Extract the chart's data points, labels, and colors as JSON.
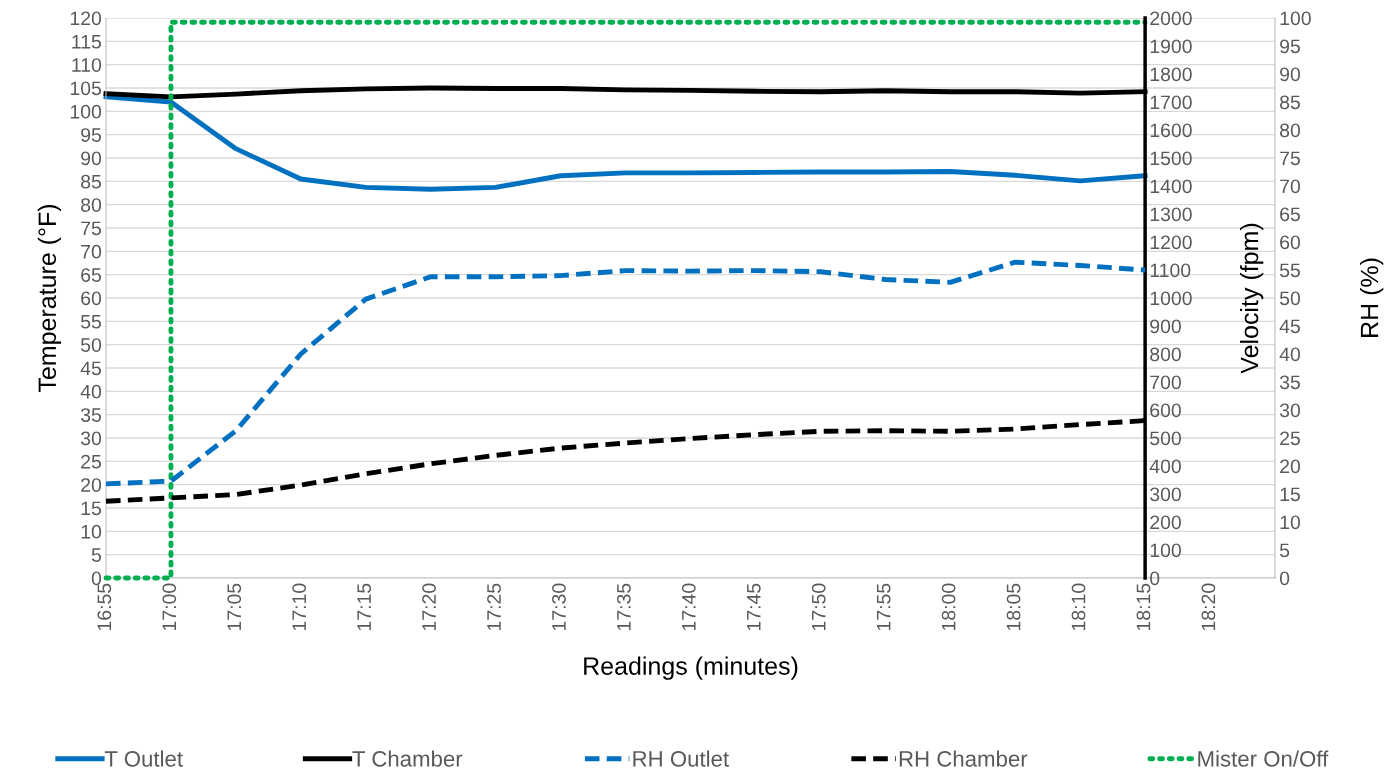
{
  "chart_data": {
    "type": "line",
    "xlabel": "Readings (minutes)",
    "ylabel": "Temperature (°F)",
    "y2label": "Velocity (fpm)",
    "y3label": "RH (%)",
    "categories": [
      "16:55",
      "17:00",
      "17:05",
      "17:10",
      "17:15",
      "17:20",
      "17:25",
      "17:30",
      "17:35",
      "17:40",
      "17:45",
      "17:50",
      "17:55",
      "18:00",
      "18:05",
      "18:10",
      "18:15",
      "18:20",
      null
    ],
    "series": [
      {
        "name": "T Outlet",
        "color": "#0070c0",
        "line_style": "solid",
        "values": [
          103.1,
          102,
          92,
          85.5,
          83.7,
          83.3,
          83.7,
          86.2,
          86.8,
          86.8,
          86.9,
          87,
          87,
          87.1,
          86.3,
          85.1,
          86.2,
          null,
          null
        ]
      },
      {
        "name": "T Chamber",
        "color": "#000000",
        "line_style": "solid",
        "values": [
          103.8,
          103.1,
          103.7,
          104.4,
          104.8,
          105,
          104.9,
          104.9,
          104.6,
          104.5,
          104.3,
          104.2,
          104.4,
          104.2,
          104.2,
          103.9,
          104.2,
          null,
          null
        ]
      },
      {
        "name": "RH Outlet",
        "color": "#0070c0",
        "line_style": "dashed",
        "axis": "y3",
        "values": [
          16.8,
          17.3,
          26.3,
          40,
          49.8,
          53.8,
          53.8,
          54,
          54.9,
          54.8,
          54.9,
          54.7,
          53.3,
          52.8,
          56.4,
          55.8,
          55,
          null,
          null
        ]
      },
      {
        "name": "RH Chamber",
        "color": "#000000",
        "line_style": "dashed",
        "axis": "y3",
        "values": [
          13.7,
          14.3,
          14.9,
          16.6,
          18.6,
          20.4,
          21.9,
          23.2,
          24.1,
          24.9,
          25.6,
          26.2,
          26.3,
          26.2,
          26.6,
          27.4,
          28.1,
          null,
          null
        ]
      },
      {
        "name": "Mister On/Off",
        "color": "#00b050",
        "line_style": "dotted",
        "type": "step",
        "axis": "y2",
        "values": [
          0,
          1985,
          1985,
          1985,
          1985,
          1985,
          1985,
          1985,
          1985,
          1985,
          1985,
          1985,
          1985,
          1985,
          1985,
          1985,
          1985,
          null,
          null
        ]
      }
    ],
    "ylim": [
      0,
      120
    ],
    "yticks": [
      0,
      5,
      10,
      15,
      20,
      25,
      30,
      35,
      40,
      45,
      50,
      55,
      60,
      65,
      70,
      75,
      80,
      85,
      90,
      95,
      100,
      105,
      110,
      115,
      120
    ],
    "y2lim": [
      0,
      2000
    ],
    "y2ticks": [
      0,
      100,
      200,
      300,
      400,
      500,
      600,
      700,
      800,
      900,
      1000,
      1100,
      1200,
      1300,
      1400,
      1500,
      1600,
      1700,
      1800,
      1900,
      2000
    ],
    "y3lim": [
      0,
      100
    ],
    "y3ticks": [
      0,
      5,
      10,
      15,
      20,
      25,
      30,
      35,
      40,
      45,
      50,
      55,
      60,
      65,
      70,
      75,
      80,
      85,
      90,
      95,
      100
    ],
    "grid": "y",
    "legend": "bottom",
    "marker": "none"
  }
}
